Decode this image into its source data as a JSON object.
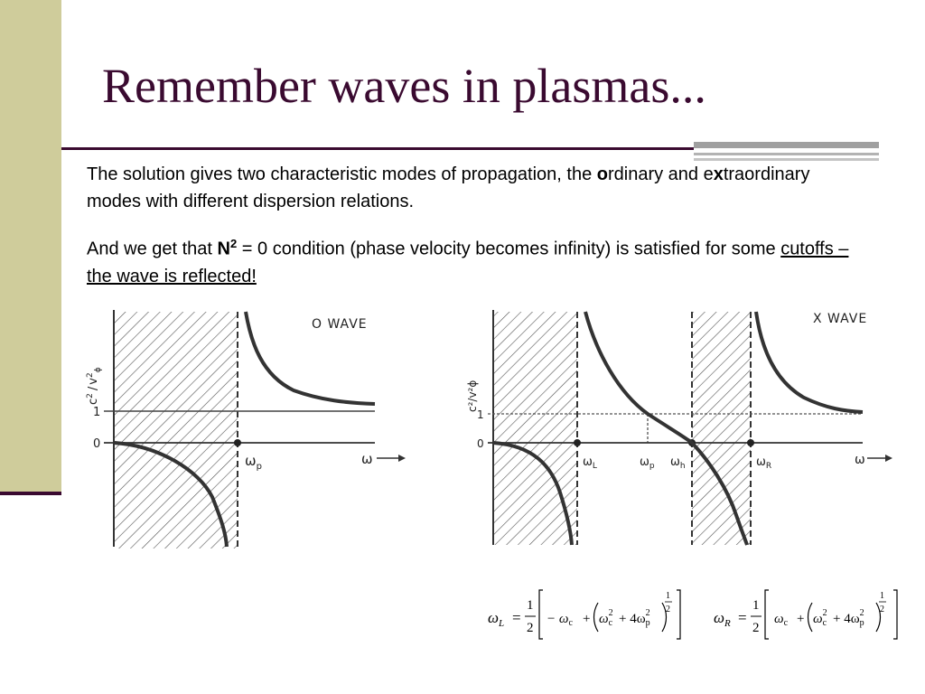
{
  "slide": {
    "title": "Remember waves in plasmas...",
    "accent_color": "#3a0a30",
    "sidebar_color": "#cfcc9b"
  },
  "paragraph1": {
    "before_o": "The solution gives two characteristic modes of propagation, the ",
    "o_letter": "o",
    "after_o": "rdinary and e",
    "x_letter": "x",
    "after_x": "traordinary modes with different dispersion relations."
  },
  "paragraph2": {
    "before_n": "And we get that ",
    "n_letter": "N",
    "n_exponent": "2",
    "after_n": " = 0 condition (phase velocity becomes infinity) is satisfied for some ",
    "underlined": "cutoffs – the wave is reflected!"
  },
  "o_wave_figure": {
    "label": "O WAVE",
    "y_axis_label_top": "v",
    "y_axis_label_top_sup": "2",
    "y_axis_label_top_sub": "ϕ",
    "y_axis_label_bottom": "c",
    "y_axis_label_bottom_sup": "2",
    "tick_one": "1",
    "tick_zero": "0",
    "omega_p_label": "ω",
    "omega_p_sub": "p",
    "omega_axis": "ω"
  },
  "x_wave_figure": {
    "label": "X WAVE",
    "y_axis_label": "c²/v²ϕ",
    "tick_one": "1",
    "tick_zero": "0",
    "omega_l": "ω",
    "omega_l_sub": "L",
    "omega_p": "ω",
    "omega_p_sub": "p",
    "omega_h": "ω",
    "omega_h_sub": "h",
    "omega_r": "ω",
    "omega_r_sub": "R",
    "omega_axis": "ω"
  },
  "formulas": {
    "omega_L": {
      "lhs": "ω",
      "lhs_sub": "L",
      "equals": "=",
      "numerator": "1",
      "denominator": "2",
      "term1": "− ω",
      "term1_sub": "c",
      "plus": "+",
      "paren_omega_c": "ω",
      "paren_omega_c_sub": "c",
      "paren_omega_c_sup": "2",
      "plus_four": "+ 4ω",
      "omega_p_sub": "p",
      "omega_p_sup": "2",
      "exp_num": "1",
      "exp_den": "2"
    },
    "omega_R": {
      "lhs": "ω",
      "lhs_sub": "R",
      "equals": "=",
      "numerator": "1",
      "denominator": "2",
      "term1": "ω",
      "term1_sub": "c",
      "plus": "+",
      "paren_omega_c": "ω",
      "paren_omega_c_sub": "c",
      "paren_omega_c_sup": "2",
      "plus_four": "+ 4ω",
      "omega_p_sub": "p",
      "omega_p_sup": "2",
      "exp_num": "1",
      "exp_den": "2"
    }
  }
}
